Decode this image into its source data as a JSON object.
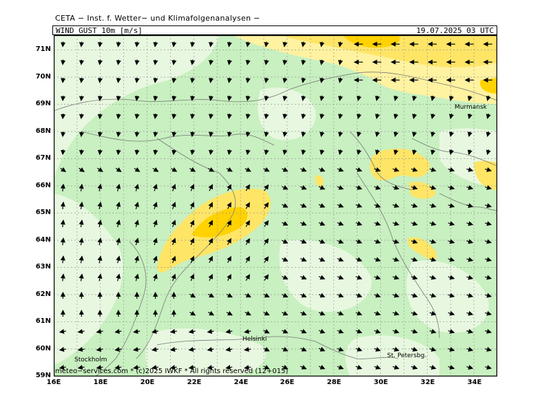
{
  "header": {
    "source": "CETA − Inst. f. Wetter− und Klimafolgenanalysen −",
    "parameter": "WIND GUST 10m [m/s]",
    "valid_time": "19.07.2025 03 UTC"
  },
  "footer": "meteo−services.com * (c)2025 IWKF * All rights reserved (12+015)",
  "axes": {
    "lat_labels": [
      "71N",
      "70N",
      "69N",
      "68N",
      "67N",
      "66N",
      "65N",
      "64N",
      "63N",
      "62N",
      "61N",
      "60N",
      "59N"
    ],
    "lon_labels": [
      "16E",
      "18E",
      "20E",
      "22E",
      "24E",
      "26E",
      "28E",
      "30E",
      "32E",
      "34E"
    ]
  },
  "cities": [
    {
      "name": "Murmansk",
      "lat": 68.9,
      "lon": 33.1
    },
    {
      "name": "Helsinki",
      "lat": 60.2,
      "lon": 24.9
    },
    {
      "name": "Stockholm",
      "lat": 59.3,
      "lon": 18.0
    },
    {
      "name": "St. Petersbg.",
      "lat": 59.9,
      "lon": 30.3
    }
  ],
  "colors": {
    "green_light": "#e8f8e0",
    "green_mid": "#c8f0c0",
    "green": "#b8ecb0",
    "yellow_light": "#fff2a0",
    "yellow": "#ffe566",
    "orange": "#ffd200",
    "grid": "#999999",
    "coast": "#777777"
  }
}
